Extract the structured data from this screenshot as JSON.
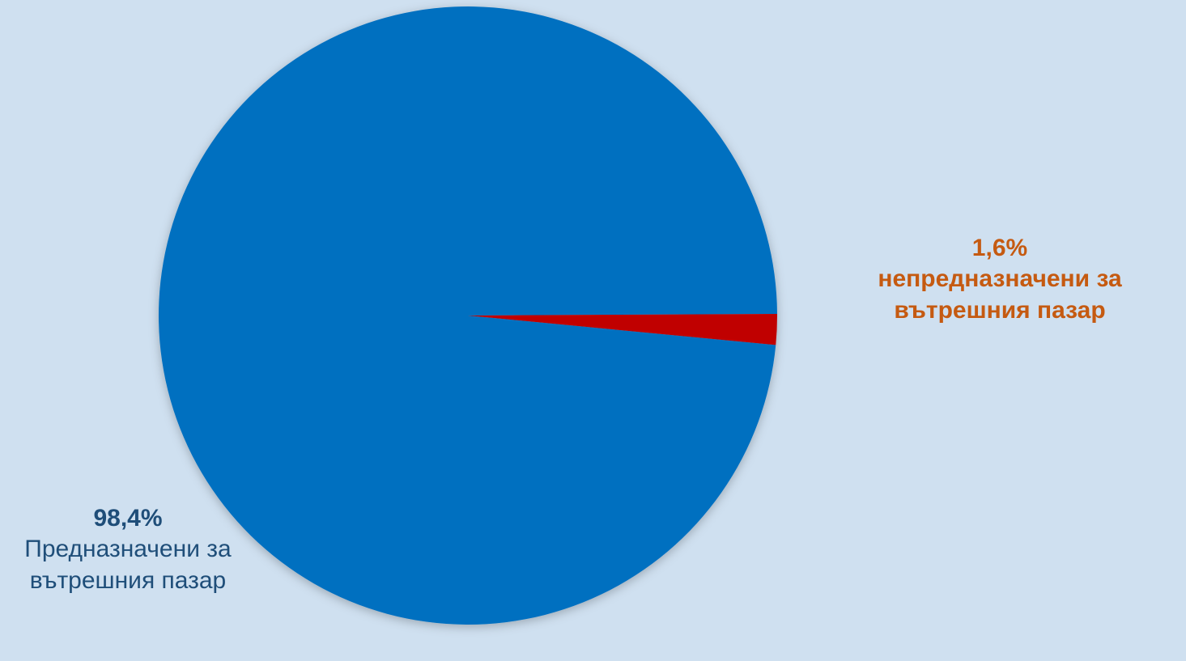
{
  "chart_data": {
    "type": "pie",
    "title": "",
    "slices": [
      {
        "value": 98.4,
        "pct_label": "98,4%",
        "label": "Предназначени за вътрешния пазар",
        "color": "#0070c0",
        "label_color": "#1f4e79"
      },
      {
        "value": 1.6,
        "pct_label": "1,6%",
        "label": "непредназначени за вътрешния пазар",
        "color": "#c00000",
        "label_color": "#c55a11"
      }
    ]
  },
  "colors": {
    "background": "#cfe0f0"
  }
}
